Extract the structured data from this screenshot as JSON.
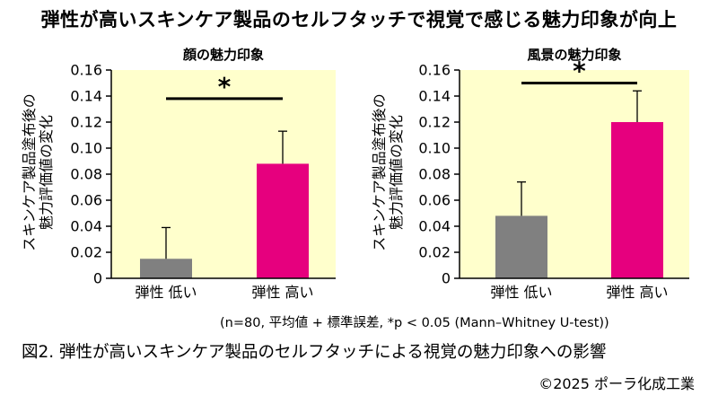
{
  "main_title": "弾性が高いスキンケア製品のセルフタッチで視覚で感じる魅力印象が向上",
  "note": "(n=80, 平均値 + 標準誤差, *p < 0.05 (Mann–Whitney U-test))",
  "caption": "図2. 弾性が高いスキンケア製品のセルフタッチによる視覚の魅力印象への影響",
  "copyright": "©2025 ポーラ化成工業",
  "colors": {
    "plot_bg": "#FFFFCC",
    "low": "#808080",
    "high": "#E6007E"
  },
  "chart_data": [
    {
      "type": "bar",
      "title": "顔の魅力印象",
      "ylabel_lines": [
        "スキンケア製品塗布後の",
        "魅力評価値の変化"
      ],
      "categories": [
        "弾性 低い",
        "弾性 高い"
      ],
      "values": [
        0.015,
        0.088
      ],
      "errors": [
        0.024,
        0.025
      ],
      "ylim": [
        0,
        0.16
      ],
      "yticks": [
        "0",
        "0.02",
        "0.04",
        "0.06",
        "0.08",
        "0.10",
        "0.12",
        "0.14",
        "0.16"
      ],
      "significance": {
        "label": "*",
        "y": 0.138
      }
    },
    {
      "type": "bar",
      "title": "風景の魅力印象",
      "ylabel_lines": [
        "スキンケア製品塗布後の",
        "魅力評価値の変化"
      ],
      "categories": [
        "弾性 低い",
        "弾性 高い"
      ],
      "values": [
        0.048,
        0.12
      ],
      "errors": [
        0.026,
        0.024
      ],
      "ylim": [
        0,
        0.16
      ],
      "yticks": [
        "0",
        "0.02",
        "0.04",
        "0.06",
        "0.08",
        "0.10",
        "0.12",
        "0.14",
        "0.16"
      ],
      "significance": {
        "label": "*",
        "y": 0.15
      }
    }
  ]
}
